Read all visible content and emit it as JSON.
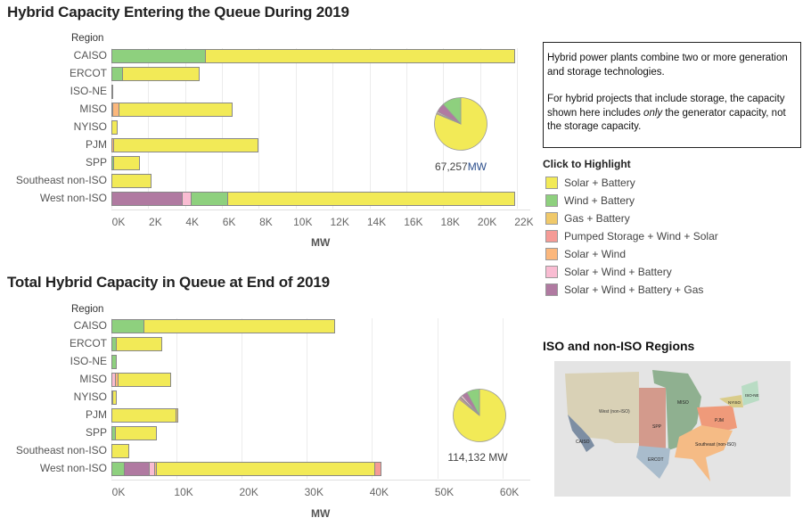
{
  "legend": {
    "title": "Click to Highlight",
    "items": [
      {
        "key": "solar_battery",
        "label": "Solar + Battery",
        "color": "#f2ea57"
      },
      {
        "key": "wind_battery",
        "label": "Wind + Battery",
        "color": "#8ed07e"
      },
      {
        "key": "gas_battery",
        "label": "Gas + Battery",
        "color": "#f0c96a"
      },
      {
        "key": "pumped_wind_solar",
        "label": "Pumped Storage + Wind + Solar",
        "color": "#f59b96"
      },
      {
        "key": "solar_wind",
        "label": "Solar + Wind",
        "color": "#fbb77c"
      },
      {
        "key": "solar_wind_battery",
        "label": "Solar + Wind + Battery",
        "color": "#f9bcd2"
      },
      {
        "key": "solar_wind_battery_gas",
        "label": "Solar + Wind + Battery + Gas",
        "color": "#b07aa1"
      }
    ]
  },
  "info": {
    "p1": "Hybrid power plants combine two or more generation and storage technologies.",
    "p2_before": "For hybrid projects that include storage, the capacity shown here includes ",
    "p2_em": "only",
    "p2_after": " the generator capacity, not the storage capacity."
  },
  "map": {
    "title": "ISO and non-ISO Regions",
    "labels": [
      "West (non-ISO)",
      "CAISO",
      "SPP",
      "MISO",
      "ERCOT",
      "PJM",
      "NYISO",
      "ISO-NE",
      "Southeast (non-ISO)"
    ]
  },
  "chart_data": [
    {
      "type": "bar",
      "orientation": "horizontal-stacked",
      "title": "Hybrid Capacity Entering the Queue During 2019",
      "ylabel": "Region",
      "xlabel": "MW",
      "xlim": [
        0,
        22500
      ],
      "xticks": [
        0,
        2000,
        4000,
        6000,
        8000,
        10000,
        12000,
        14000,
        16000,
        18000,
        20000,
        22000
      ],
      "xtick_labels": [
        "0K",
        "2K",
        "4K",
        "6K",
        "8K",
        "10K",
        "12K",
        "14K",
        "16K",
        "18K",
        "20K",
        "22K"
      ],
      "categories": [
        "CAISO",
        "ERCOT",
        "ISO-NE",
        "MISO",
        "NYISO",
        "PJM",
        "SPP",
        "Southeast non-ISO",
        "West non-ISO"
      ],
      "series": [
        {
          "name": "Solar + Wind + Battery + Gas",
          "key": "solar_wind_battery_gas",
          "values": [
            0,
            0,
            0,
            0,
            0,
            0,
            0,
            0,
            3800
          ]
        },
        {
          "name": "Solar + Wind + Battery",
          "key": "solar_wind_battery",
          "values": [
            0,
            0,
            0,
            50,
            0,
            0,
            0,
            0,
            500
          ]
        },
        {
          "name": "Wind + Battery",
          "key": "wind_battery",
          "values": [
            5100,
            600,
            20,
            0,
            0,
            0,
            80,
            0,
            2000
          ]
        },
        {
          "name": "Solar + Wind",
          "key": "solar_wind",
          "values": [
            0,
            0,
            0,
            350,
            0,
            100,
            0,
            0,
            0
          ]
        },
        {
          "name": "Solar + Battery",
          "key": "solar_battery",
          "values": [
            16800,
            4200,
            0,
            6200,
            350,
            7900,
            1470,
            2200,
            15600
          ]
        }
      ],
      "pie": {
        "total_label": "67,257",
        "unit": "MW"
      }
    },
    {
      "type": "bar",
      "orientation": "horizontal-stacked",
      "title": "Total Hybrid Capacity in Queue at End of 2019",
      "ylabel": "Region",
      "xlabel": "MW",
      "xlim": [
        0,
        64000
      ],
      "xticks": [
        0,
        10000,
        20000,
        30000,
        40000,
        50000,
        60000
      ],
      "xtick_labels": [
        "0K",
        "10K",
        "20K",
        "30K",
        "40K",
        "50K",
        "60K"
      ],
      "categories": [
        "CAISO",
        "ERCOT",
        "ISO-NE",
        "MISO",
        "NYISO",
        "PJM",
        "SPP",
        "Southeast non-ISO",
        "West non-ISO"
      ],
      "series": [
        {
          "name": "Wind + Battery",
          "key": "wind_battery",
          "values": [
            4900,
            700,
            800,
            0,
            150,
            0,
            600,
            0,
            1900
          ]
        },
        {
          "name": "Solar + Wind + Battery + Gas",
          "key": "solar_wind_battery_gas",
          "values": [
            0,
            0,
            0,
            0,
            0,
            0,
            0,
            0,
            3800
          ]
        },
        {
          "name": "Solar + Wind + Battery",
          "key": "solar_wind_battery",
          "values": [
            0,
            0,
            0,
            550,
            0,
            0,
            0,
            0,
            900
          ]
        },
        {
          "name": "Solar + Wind",
          "key": "solar_wind",
          "values": [
            0,
            0,
            0,
            350,
            0,
            0,
            0,
            0,
            200
          ]
        },
        {
          "name": "Solar + Battery",
          "key": "solar_battery",
          "values": [
            29400,
            7100,
            0,
            8200,
            650,
            9900,
            6400,
            2700,
            33600
          ]
        },
        {
          "name": "Gas + Battery",
          "key": "gas_battery",
          "values": [
            0,
            0,
            0,
            0,
            0,
            300,
            0,
            0,
            0
          ]
        },
        {
          "name": "Pumped Storage + Wind + Solar",
          "key": "pumped_wind_solar",
          "values": [
            0,
            0,
            0,
            0,
            0,
            0,
            0,
            0,
            1100
          ]
        }
      ],
      "pie": {
        "total_label": "114,132",
        "unit": "MW"
      }
    }
  ]
}
